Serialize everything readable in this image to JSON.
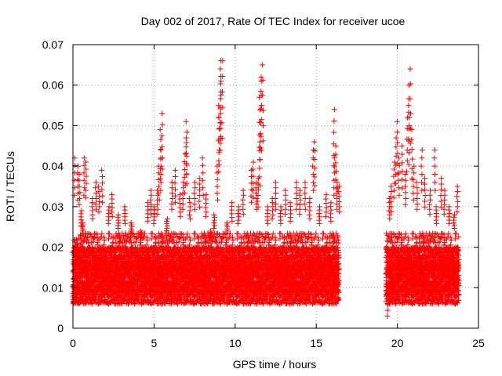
{
  "chart_data": {
    "type": "scatter",
    "title": "Day 002 of 2017, Rate Of TEC Index for receiver ucoe",
    "xlabel": "GPS time / hours",
    "ylabel": "ROTI / TECUs",
    "xlim": [
      0,
      25
    ],
    "ylim": [
      0,
      0.07
    ],
    "xticks": [
      0,
      5,
      10,
      15,
      20,
      25
    ],
    "xtick_labels": [
      "0",
      "5",
      "10",
      "15",
      "20",
      "25"
    ],
    "yticks": [
      0,
      0.01,
      0.02,
      0.03,
      0.04,
      0.05,
      0.06,
      0.07
    ],
    "ytick_labels": [
      "0",
      "0.01",
      "0.02",
      "0.03",
      "0.04",
      "0.05",
      "0.06",
      "0.07"
    ],
    "grid": true,
    "marker": "+",
    "marker_color": "#ff0000",
    "baseline": {
      "band_low": 0.006,
      "band_high": 0.02,
      "segments": [
        {
          "x_start": 0.0,
          "x_end": 16.4
        },
        {
          "x_start": 19.3,
          "x_end": 23.8
        }
      ]
    },
    "series": [
      {
        "name": "ROTI",
        "points": [
          [
            0.1,
            0.042
          ],
          [
            0.3,
            0.04
          ],
          [
            0.4,
            0.038
          ],
          [
            0.5,
            0.029
          ],
          [
            0.6,
            0.026
          ],
          [
            0.7,
            0.042
          ],
          [
            0.8,
            0.041
          ],
          [
            1.2,
            0.032
          ],
          [
            1.4,
            0.036
          ],
          [
            1.6,
            0.035
          ],
          [
            1.8,
            0.039
          ],
          [
            2.2,
            0.03
          ],
          [
            2.4,
            0.033
          ],
          [
            2.8,
            0.028
          ],
          [
            3.2,
            0.03
          ],
          [
            3.6,
            0.026
          ],
          [
            4.2,
            0.024
          ],
          [
            4.6,
            0.031
          ],
          [
            4.8,
            0.034
          ],
          [
            5.0,
            0.03
          ],
          [
            5.2,
            0.034
          ],
          [
            5.3,
            0.04
          ],
          [
            5.4,
            0.044
          ],
          [
            5.4,
            0.049
          ],
          [
            5.5,
            0.053
          ],
          [
            5.8,
            0.027
          ],
          [
            6.1,
            0.036
          ],
          [
            6.3,
            0.039
          ],
          [
            6.6,
            0.033
          ],
          [
            6.8,
            0.036
          ],
          [
            6.9,
            0.043
          ],
          [
            7.0,
            0.047
          ],
          [
            7.0,
            0.051
          ],
          [
            7.2,
            0.032
          ],
          [
            7.5,
            0.036
          ],
          [
            7.8,
            0.037
          ],
          [
            8.0,
            0.042
          ],
          [
            8.2,
            0.033
          ],
          [
            8.5,
            0.024
          ],
          [
            8.7,
            0.028
          ],
          [
            8.9,
            0.04
          ],
          [
            9.0,
            0.052
          ],
          [
            9.0,
            0.055
          ],
          [
            9.1,
            0.061
          ],
          [
            9.1,
            0.064
          ],
          [
            9.2,
            0.066
          ],
          [
            9.1,
            0.066
          ],
          [
            9.5,
            0.026
          ],
          [
            9.8,
            0.031
          ],
          [
            10.2,
            0.03
          ],
          [
            10.5,
            0.034
          ],
          [
            11.0,
            0.039
          ],
          [
            11.1,
            0.041
          ],
          [
            11.3,
            0.036
          ],
          [
            11.5,
            0.046
          ],
          [
            11.5,
            0.057
          ],
          [
            11.6,
            0.061
          ],
          [
            11.6,
            0.062
          ],
          [
            11.7,
            0.065
          ],
          [
            11.4,
            0.037
          ],
          [
            12.0,
            0.03
          ],
          [
            12.3,
            0.032
          ],
          [
            12.5,
            0.036
          ],
          [
            12.8,
            0.03
          ],
          [
            13.1,
            0.034
          ],
          [
            13.4,
            0.031
          ],
          [
            13.8,
            0.036
          ],
          [
            14.0,
            0.034
          ],
          [
            14.3,
            0.036
          ],
          [
            14.6,
            0.032
          ],
          [
            14.8,
            0.044
          ],
          [
            14.9,
            0.046
          ],
          [
            15.2,
            0.03
          ],
          [
            15.6,
            0.033
          ],
          [
            15.9,
            0.031
          ],
          [
            16.1,
            0.054
          ],
          [
            16.1,
            0.042
          ],
          [
            16.2,
            0.045
          ],
          [
            16.3,
            0.036
          ],
          [
            16.4,
            0.035
          ],
          [
            19.4,
            0.003
          ],
          [
            19.5,
            0.032
          ],
          [
            19.6,
            0.035
          ],
          [
            19.8,
            0.041
          ],
          [
            19.9,
            0.047
          ],
          [
            20.0,
            0.051
          ],
          [
            20.1,
            0.042
          ],
          [
            20.3,
            0.045
          ],
          [
            20.5,
            0.038
          ],
          [
            20.6,
            0.052
          ],
          [
            20.7,
            0.055
          ],
          [
            20.7,
            0.06
          ],
          [
            20.8,
            0.064
          ],
          [
            20.9,
            0.049
          ],
          [
            21.0,
            0.04
          ],
          [
            21.2,
            0.036
          ],
          [
            21.5,
            0.044
          ],
          [
            21.7,
            0.037
          ],
          [
            22.0,
            0.034
          ],
          [
            22.3,
            0.044
          ],
          [
            22.4,
            0.03
          ],
          [
            22.7,
            0.037
          ],
          [
            22.9,
            0.034
          ],
          [
            23.2,
            0.03
          ],
          [
            23.5,
            0.028
          ],
          [
            23.7,
            0.035
          ]
        ]
      }
    ]
  }
}
